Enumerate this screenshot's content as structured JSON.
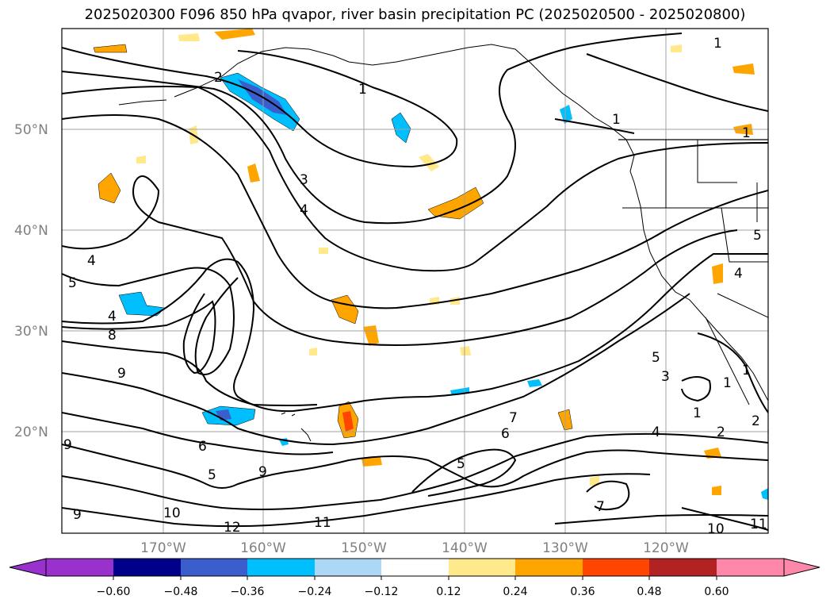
{
  "title": "2025020300 F096 850 hPa qvapor, river basin precipitation PC (2025020500 - 2025020800)",
  "map": {
    "lat_labels": [
      "50°N",
      "40°N",
      "30°N",
      "20°N"
    ],
    "lon_labels": [
      "170°W",
      "160°W",
      "150°W",
      "140°W",
      "130°W",
      "120°W"
    ],
    "contour_labels": [
      "1",
      "1",
      "1",
      "1",
      "2",
      "3",
      "4",
      "4",
      "4",
      "4",
      "5",
      "5",
      "5",
      "5",
      "6",
      "6",
      "7",
      "7",
      "8",
      "9",
      "9",
      "9",
      "9",
      "10",
      "10",
      "11",
      "11",
      "12",
      "1",
      "2",
      "3",
      "4",
      "5",
      "2",
      "1",
      "1"
    ],
    "colors": {
      "contour": "#000000",
      "grid": "#a0a0a0",
      "coast": "#000000"
    }
  },
  "colorbar": {
    "ticks": [
      "−0.60",
      "−0.48",
      "−0.36",
      "−0.24",
      "−0.12",
      "0.12",
      "0.24",
      "0.36",
      "0.48",
      "0.60"
    ],
    "colors": [
      "#9932cc",
      "#00008b",
      "#3a5fcd",
      "#00bfff",
      "#add8f5",
      "#ffffff",
      "#ffe98a",
      "#ffa500",
      "#ff4500",
      "#b22222",
      "#ff88aa"
    ]
  }
}
